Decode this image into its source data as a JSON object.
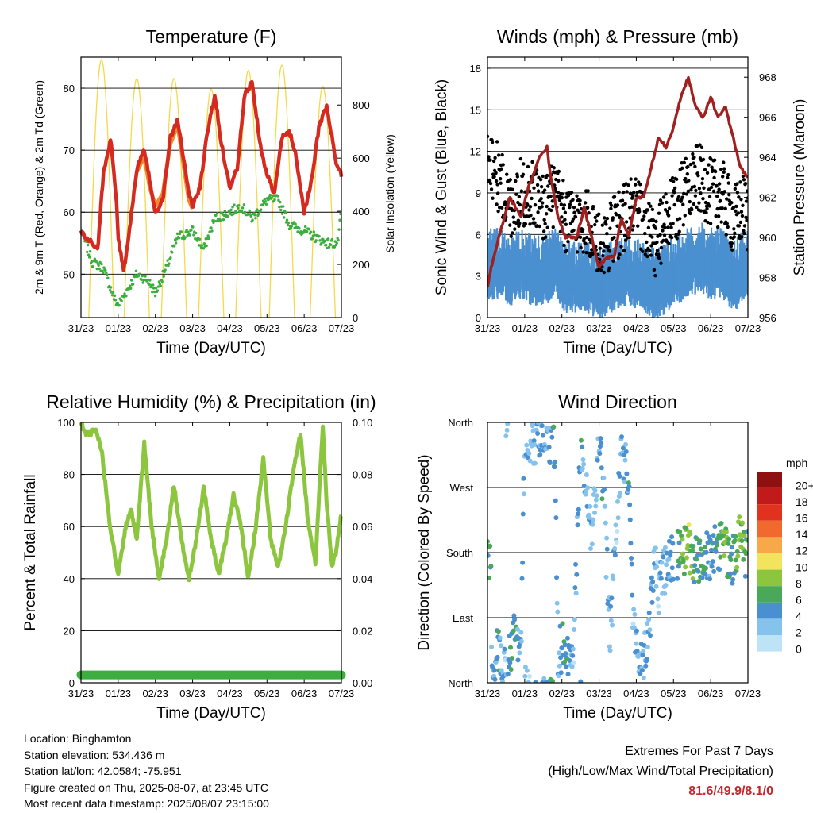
{
  "info": {
    "location": "Location: Binghamton",
    "elevation": "Station elevation: 534.436 m",
    "latlon": "Station lat/lon: 42.0584; -75.951",
    "created": "Figure created on Thu, 2025-08-07, at 23:45 UTC",
    "recent": "Most recent data timestamp: 2025/08/07 23:15:00"
  },
  "extremes": {
    "title": "Extremes For Past 7 Days",
    "subtitle": "(High/Low/Max Wind/Total Precipitation)",
    "values": "81.6/49.9/8.1/0"
  },
  "colors": {
    "temp2m": "#d42a20",
    "temp9m": "#f08a2e",
    "dewpoint": "#3bae3f",
    "solar": "#f6d94a",
    "gust": "#000000",
    "wind": "#4a90d0",
    "pressure": "#a02020",
    "rh": "#8cc63e",
    "precip": "#3bae3f"
  },
  "chart_data": [
    {
      "type": "line",
      "title": "Temperature (F)",
      "xlabel": "Time (Day/UTC)",
      "ylabel": "2m & 9m T (Red, Orange) & 2m Td (Green)",
      "y2label": "Solar Insolation (Yellow)",
      "x_ticks": [
        "31/23",
        "01/23",
        "02/23",
        "03/23",
        "04/23",
        "05/23",
        "06/23",
        "07/23"
      ],
      "yticks": [
        50,
        60,
        70,
        80
      ],
      "ylim": [
        43,
        85
      ],
      "y2ticks": [
        0,
        200,
        400,
        600,
        800
      ],
      "y2lim": [
        0,
        980
      ],
      "grid": true,
      "series": [
        {
          "name": "2m T",
          "axis": "left",
          "color": "temp2m",
          "x": [
            0,
            0.1,
            0.2,
            0.3,
            0.45,
            0.6,
            0.8,
            0.95,
            1.0,
            1.15,
            1.3,
            1.5,
            1.7,
            1.85,
            2.0,
            2.2,
            2.4,
            2.6,
            2.8,
            2.9,
            3.0,
            3.2,
            3.4,
            3.6,
            3.75,
            3.9,
            4.0,
            4.2,
            4.4,
            4.6,
            4.75,
            4.85,
            5.0,
            5.2,
            5.4,
            5.6,
            5.75,
            5.85,
            6.0,
            6.2,
            6.4,
            6.6,
            6.75,
            6.85,
            7.0
          ],
          "y": [
            57,
            56,
            55.5,
            55,
            54,
            66,
            72,
            62,
            56,
            50.5,
            57,
            67,
            70,
            65,
            60,
            62,
            72,
            75,
            67,
            63,
            61,
            64,
            73,
            79,
            72,
            67,
            64,
            67,
            79,
            81,
            74,
            70,
            66,
            63,
            72,
            73,
            70,
            66,
            60,
            65,
            74,
            77,
            72,
            68,
            66
          ]
        },
        {
          "name": "9m T",
          "axis": "left",
          "color": "temp9m",
          "x": [
            1.5,
            1.7,
            1.85,
            2.0,
            2.2,
            2.4,
            2.6,
            2.8,
            2.9,
            3.0
          ],
          "y": [
            66.5,
            69,
            64,
            61,
            63,
            71,
            74,
            66,
            62,
            60.5
          ]
        },
        {
          "name": "2m Td",
          "axis": "left",
          "color": "dewpoint",
          "x": [
            0,
            0.3,
            0.6,
            0.9,
            1.0,
            1.2,
            1.5,
            1.8,
            2.0,
            2.3,
            2.6,
            3.0,
            3.3,
            3.6,
            4.0,
            4.3,
            4.6,
            5.0,
            5.3,
            5.6,
            6.0,
            6.3,
            6.6,
            6.9,
            7.0
          ],
          "y": [
            57,
            52,
            51,
            46,
            45,
            47,
            50,
            49,
            47,
            51,
            56,
            57,
            54,
            59,
            60,
            61,
            59,
            62,
            62,
            58,
            57,
            56,
            55,
            55,
            60
          ]
        },
        {
          "name": "Solar",
          "axis": "right",
          "color": "solar",
          "peaks_x": [
            0.55,
            1.5,
            2.5,
            3.5,
            4.5,
            5.4,
            6.5
          ],
          "peaks_y": [
            970,
            900,
            900,
            860,
            930,
            950,
            870
          ]
        }
      ]
    },
    {
      "type": "scatter",
      "title": "Winds (mph) & Pressure (mb)",
      "xlabel": "Time (Day/UTC)",
      "ylabel": "Sonic Wind & Gust (Blue, Black)",
      "y2label": "Station Pressure (Maroon)",
      "x_ticks": [
        "31/23",
        "01/23",
        "02/23",
        "03/23",
        "04/23",
        "05/23",
        "06/23",
        "07/23"
      ],
      "yticks": [
        0,
        3,
        6,
        9,
        12,
        15,
        18
      ],
      "ylim": [
        0,
        18.8
      ],
      "y2ticks": [
        956,
        958,
        960,
        962,
        964,
        966,
        968
      ],
      "y2lim": [
        956,
        969
      ],
      "grid": true,
      "series": [
        {
          "name": "Gust",
          "color": "gust",
          "x": [
            0,
            0.3,
            0.6,
            0.9,
            1.2,
            1.5,
            1.8,
            2.1,
            2.4,
            2.7,
            3.0,
            3.3,
            3.6,
            3.9,
            4.2,
            4.5,
            4.8,
            5.1,
            5.4,
            5.7,
            6.0,
            6.3,
            6.6,
            6.9,
            7.0
          ],
          "y": [
            12,
            10,
            8,
            9,
            9,
            8,
            9,
            7,
            7,
            7,
            5,
            6,
            7,
            8,
            7,
            5,
            7,
            8,
            10,
            10,
            9,
            9,
            7,
            8,
            7
          ]
        },
        {
          "name": "Wind",
          "color": "wind",
          "x": [
            0,
            0.3,
            0.6,
            0.9,
            1.2,
            1.5,
            1.8,
            2.1,
            2.4,
            2.7,
            3.0,
            3.3,
            3.6,
            3.9,
            4.2,
            4.5,
            4.8,
            5.1,
            5.4,
            5.7,
            6.0,
            6.3,
            6.6,
            6.9,
            7.0
          ],
          "y": [
            4,
            4,
            3.5,
            4,
            3.5,
            3.5,
            4,
            3,
            3,
            3,
            2.5,
            3,
            3.5,
            3.5,
            3,
            2.5,
            3,
            3.5,
            4,
            4.5,
            4,
            4,
            3,
            4,
            4
          ]
        },
        {
          "name": "Pressure",
          "axis": "right",
          "color": "pressure",
          "x": [
            0,
            0.1,
            0.3,
            0.6,
            0.9,
            1.1,
            1.4,
            1.6,
            1.7,
            1.9,
            2.1,
            2.4,
            2.6,
            2.8,
            3.0,
            3.2,
            3.4,
            3.6,
            3.8,
            4.0,
            4.2,
            4.4,
            4.6,
            4.8,
            5.0,
            5.2,
            5.4,
            5.6,
            5.8,
            6.0,
            6.2,
            6.4,
            6.6,
            6.8,
            7.0
          ],
          "y": [
            957.5,
            958.5,
            960,
            962,
            961,
            962.5,
            964,
            964.5,
            963,
            961,
            960,
            960,
            961.5,
            960,
            958.5,
            959,
            959,
            961,
            960,
            962,
            962,
            963.5,
            965,
            964.5,
            965.5,
            967,
            968,
            966.5,
            966,
            967,
            966,
            966.5,
            965,
            963.5,
            963
          ]
        }
      ]
    },
    {
      "type": "line",
      "title": "Relative Humidity (%) & Precipitation (in)",
      "xlabel": "Time (Day/UTC)",
      "ylabel": "Percent & Total Rainfall",
      "x_ticks": [
        "31/23",
        "01/23",
        "02/23",
        "03/23",
        "04/23",
        "05/23",
        "06/23",
        "07/23"
      ],
      "yticks": [
        0,
        20,
        40,
        60,
        80,
        100
      ],
      "ylim": [
        0,
        100
      ],
      "y2ticks": [
        "0.00",
        "0.02",
        "0.04",
        "0.06",
        "0.08",
        "0.10"
      ],
      "y2lim": [
        0,
        0.1
      ],
      "grid": true,
      "series": [
        {
          "name": "RH",
          "color": "rh",
          "x": [
            0,
            0.1,
            0.25,
            0.4,
            0.55,
            0.8,
            1.0,
            1.2,
            1.35,
            1.5,
            1.7,
            1.9,
            2.1,
            2.3,
            2.5,
            2.7,
            2.9,
            3.1,
            3.3,
            3.5,
            3.7,
            3.9,
            4.1,
            4.3,
            4.5,
            4.7,
            4.9,
            5.1,
            5.3,
            5.5,
            5.7,
            5.9,
            6.1,
            6.3,
            6.5,
            6.6,
            6.75,
            6.85,
            7.0
          ],
          "y": [
            100,
            96,
            96,
            97,
            90,
            58,
            42,
            60,
            66,
            55,
            92,
            60,
            40,
            55,
            76,
            55,
            40,
            55,
            75,
            55,
            42,
            55,
            72,
            60,
            40,
            60,
            86,
            55,
            44,
            60,
            80,
            96,
            62,
            46,
            99,
            70,
            45,
            50,
            65
          ]
        },
        {
          "name": "Total Precip",
          "axis": "right",
          "color": "precip",
          "x": [
            0,
            7
          ],
          "y": [
            0.003,
            0.003
          ]
        }
      ]
    },
    {
      "type": "scatter",
      "title": "Wind Direction",
      "xlabel": "Time (Day/UTC)",
      "ylabel": "Direction (Colored By Speed)",
      "x_ticks": [
        "31/23",
        "01/23",
        "02/23",
        "03/23",
        "04/23",
        "05/23",
        "06/23",
        "07/23"
      ],
      "ytick_labels": [
        "North",
        "East",
        "South",
        "West",
        "North"
      ],
      "ylim": [
        0,
        360
      ],
      "colorbar_title": "mph",
      "colorbar_labels": [
        "0",
        "2",
        "4",
        "6",
        "8",
        "10",
        "12",
        "14",
        "16",
        "18",
        "20+"
      ],
      "colorbar_colors": [
        "#bde3f7",
        "#86c3ec",
        "#4a90d0",
        "#4aa85a",
        "#8cc63e",
        "#f2e45c",
        "#f7a94a",
        "#f06a2e",
        "#e0321e",
        "#c01a1a",
        "#8f1010"
      ],
      "grid": true,
      "series": [
        {
          "name": "Direction",
          "x": [
            0.1,
            0.3,
            0.5,
            0.7,
            0.9,
            1.0,
            1.2,
            1.4,
            1.6,
            1.8,
            1.9,
            2.1,
            2.3,
            2.5,
            2.6,
            2.8,
            3.0,
            3.1,
            3.3,
            3.5,
            3.6,
            3.8,
            3.9,
            4.1,
            4.3,
            4.5,
            4.6,
            4.8,
            5.0,
            5.2,
            5.4,
            5.6,
            5.8,
            6.0,
            6.2,
            6.4,
            6.6,
            6.8,
            6.9,
            7.0
          ],
          "y": [
            20,
            45,
            15,
            70,
            30,
            350,
            330,
            345,
            340,
            330,
            40,
            60,
            20,
            340,
            300,
            200,
            330,
            280,
            60,
            250,
            320,
            290,
            100,
            15,
            50,
            180,
            130,
            160,
            175,
            180,
            185,
            170,
            180,
            175,
            190,
            185,
            170,
            200,
            185,
            175
          ],
          "speed": [
            3,
            4,
            2,
            6,
            3,
            3,
            2,
            4,
            3,
            5,
            3,
            6,
            2,
            4,
            3,
            2,
            3,
            4,
            3,
            2,
            3,
            4,
            2,
            3,
            3,
            2,
            2,
            3,
            4,
            6,
            8,
            5,
            6,
            4,
            5,
            7,
            4,
            8,
            6,
            5
          ]
        }
      ]
    }
  ]
}
